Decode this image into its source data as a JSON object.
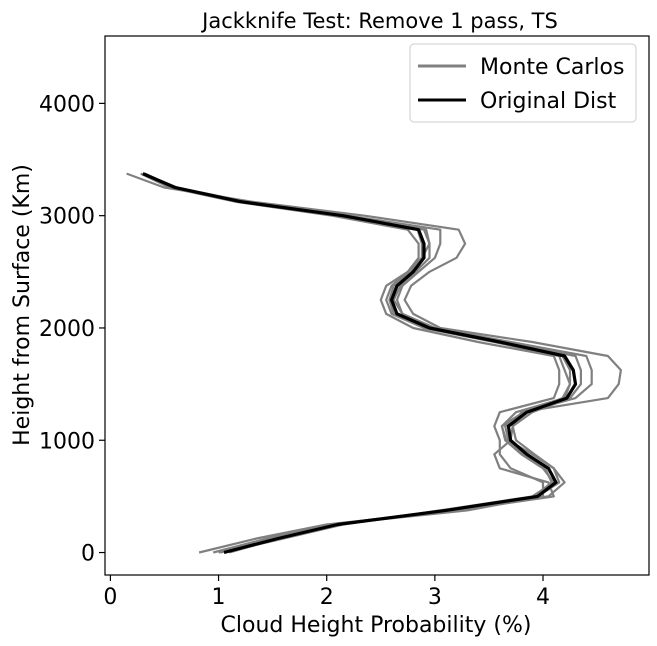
{
  "chart_data": {
    "type": "line",
    "title": "Jackknife Test: Remove 1 pass, TS",
    "xlabel": "Cloud Height Probability (%)",
    "ylabel": "Height from Surface (Km)",
    "xlim": [
      -0.05,
      4.98
    ],
    "ylim": [
      -200,
      4600
    ],
    "xticks": [
      0,
      1,
      2,
      3,
      4
    ],
    "yticks": [
      0,
      1000,
      2000,
      3000,
      4000
    ],
    "grid": false,
    "legend_position": "top-right",
    "legend": [
      {
        "label": "Monte Carlos",
        "color": "#808080"
      },
      {
        "label": "Original Dist",
        "color": "#000000"
      }
    ],
    "y": [
      0,
      125,
      250,
      375,
      500,
      625,
      750,
      875,
      1000,
      1125,
      1250,
      1375,
      1500,
      1625,
      1750,
      1875,
      2000,
      2125,
      2250,
      2375,
      2500,
      2625,
      2750,
      2875,
      3000,
      3125,
      3250,
      3375
    ],
    "original": [
      1.05,
      1.55,
      2.1,
      3.1,
      3.95,
      4.12,
      4.05,
      3.85,
      3.7,
      3.68,
      3.85,
      4.22,
      4.3,
      4.28,
      4.2,
      3.6,
      2.95,
      2.65,
      2.6,
      2.65,
      2.8,
      2.9,
      2.9,
      2.85,
      2.15,
      1.2,
      0.6,
      0.3
    ],
    "monte_carlo": [
      {
        "x": [
          0.82,
          1.35,
          2.0,
          3.2,
          4.1,
          4.05,
          3.6,
          3.55,
          3.7,
          3.72,
          3.8,
          4.6,
          4.7,
          4.72,
          4.6,
          3.9,
          3.05,
          2.8,
          2.72,
          2.78,
          2.95,
          3.2,
          3.28,
          3.22,
          2.35,
          1.3,
          0.5,
          0.15
        ]
      },
      {
        "x": [
          0.95,
          1.45,
          2.05,
          3.3,
          4.0,
          4.0,
          3.7,
          3.6,
          3.6,
          3.55,
          3.6,
          4.1,
          4.15,
          4.15,
          4.1,
          3.4,
          2.8,
          2.55,
          2.5,
          2.55,
          2.75,
          2.85,
          2.85,
          2.75,
          2.05,
          1.15,
          0.55,
          0.28
        ]
      },
      {
        "x": [
          1.0,
          1.5,
          2.1,
          3.15,
          3.95,
          4.15,
          4.1,
          3.9,
          3.68,
          3.65,
          3.82,
          4.3,
          4.45,
          4.45,
          4.4,
          3.7,
          3.0,
          2.7,
          2.65,
          2.7,
          2.85,
          3.0,
          3.05,
          3.05,
          2.2,
          1.25,
          0.62,
          0.3
        ]
      },
      {
        "x": [
          1.05,
          1.6,
          2.15,
          3.05,
          3.9,
          4.1,
          4.0,
          3.8,
          3.65,
          3.62,
          3.75,
          4.2,
          4.25,
          4.2,
          4.15,
          3.55,
          2.9,
          2.6,
          2.55,
          2.6,
          2.75,
          2.88,
          2.95,
          2.92,
          2.1,
          1.2,
          0.6,
          0.32
        ]
      },
      {
        "x": [
          1.1,
          1.55,
          2.05,
          3.12,
          4.05,
          4.2,
          4.1,
          3.92,
          3.75,
          3.72,
          3.9,
          4.25,
          4.35,
          4.35,
          4.3,
          3.65,
          3.0,
          2.7,
          2.62,
          2.68,
          2.82,
          2.95,
          2.95,
          2.9,
          2.2,
          1.22,
          0.6,
          0.3
        ]
      },
      {
        "x": [
          1.02,
          1.5,
          2.12,
          3.08,
          3.92,
          4.08,
          4.02,
          3.82,
          3.66,
          3.62,
          3.82,
          4.18,
          4.25,
          4.25,
          4.18,
          3.58,
          2.92,
          2.62,
          2.58,
          2.62,
          2.78,
          2.88,
          2.88,
          2.84,
          2.14,
          1.18,
          0.6,
          0.3
        ]
      }
    ]
  }
}
